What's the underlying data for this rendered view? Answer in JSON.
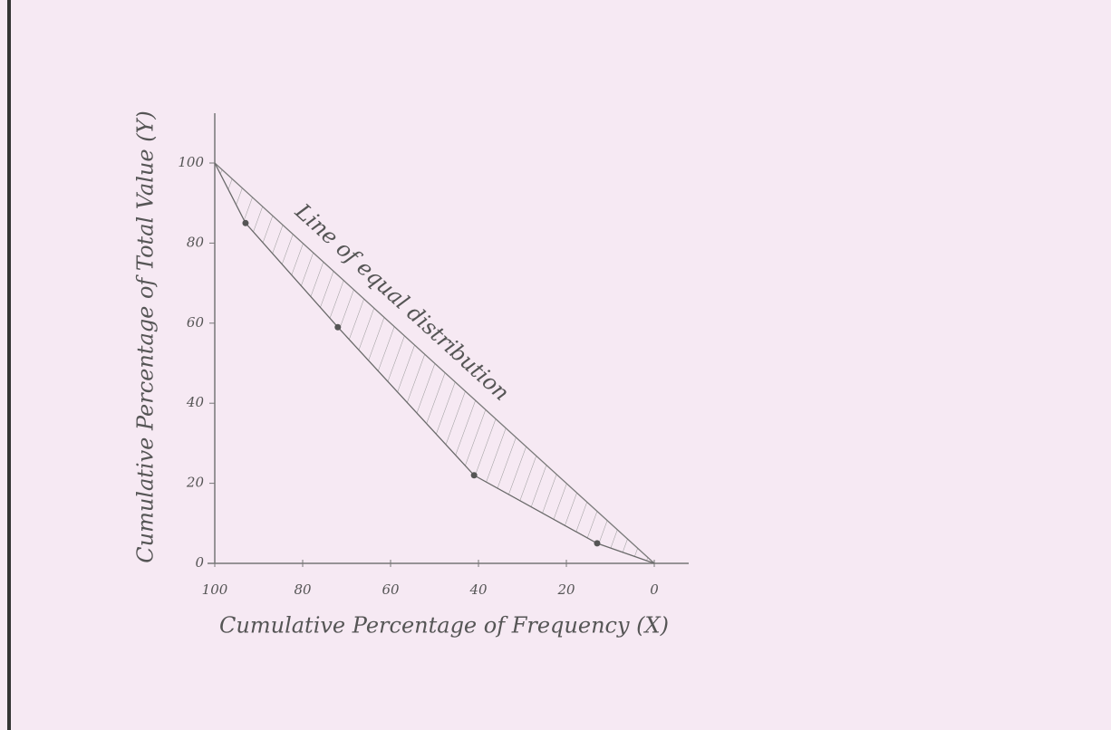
{
  "chart_data": {
    "type": "line",
    "x_label": "Cumulative Percentage of Frequency (X)",
    "y_label": "Cumulative Percentage of Total Value (Y)",
    "x": [
      100,
      93,
      72,
      41,
      13,
      0
    ],
    "series": [
      {
        "name": "Line of equal distribution",
        "color": "#7a7a7a",
        "values": [
          100,
          93,
          72,
          41,
          13,
          0
        ]
      },
      {
        "color": "#6a6a6a",
        "values": [
          100,
          85,
          59,
          22,
          5,
          0
        ]
      }
    ],
    "xlim": [
      100,
      0
    ],
    "ylim": [
      0,
      100
    ],
    "xticks": [
      100,
      80,
      60,
      40,
      20,
      0
    ],
    "yticks": [
      0,
      20,
      40,
      60,
      80,
      100
    ],
    "shaded": true
  }
}
